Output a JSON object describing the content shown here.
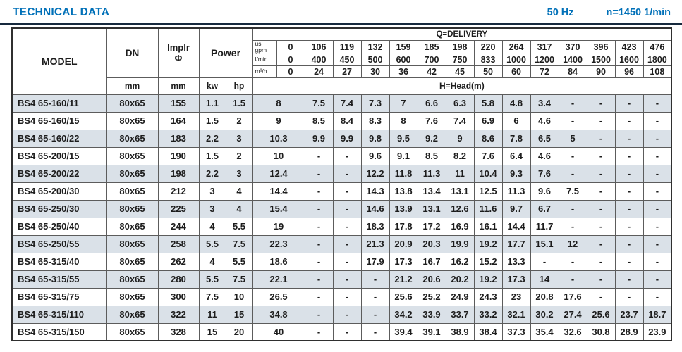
{
  "header": {
    "title": "TECHNICAL DATA",
    "frequency": "50 Hz",
    "speed": "n=1450 1/min"
  },
  "table": {
    "headers": {
      "model": "MODEL",
      "dn": "DN",
      "implr_line1": "Implr",
      "implr_line2": "Φ",
      "power": "Power",
      "mm_dn": "mm",
      "mm_implr": "mm",
      "kw": "kw",
      "hp": "hp",
      "delivery": "Q=DELIVERY",
      "head": "H=Head(m)"
    },
    "units": [
      {
        "l1": "us",
        "l2": "gpm",
        "values": [
          "0",
          "106",
          "119",
          "132",
          "159",
          "185",
          "198",
          "220",
          "264",
          "317",
          "370",
          "396",
          "423",
          "476"
        ]
      },
      {
        "l1": "l/min",
        "values": [
          "0",
          "400",
          "450",
          "500",
          "600",
          "700",
          "750",
          "833",
          "1000",
          "1200",
          "1400",
          "1500",
          "1600",
          "1800"
        ]
      },
      {
        "l1": "m³/h",
        "values": [
          "0",
          "24",
          "27",
          "30",
          "36",
          "42",
          "45",
          "50",
          "60",
          "72",
          "84",
          "90",
          "96",
          "108"
        ]
      }
    ],
    "rows": [
      {
        "model": "BS4 65-160/11",
        "dn": "80x65",
        "implr": "155",
        "kw": "1.1",
        "hp": "1.5",
        "heads": [
          "8",
          "7.5",
          "7.4",
          "7.3",
          "7",
          "6.6",
          "6.3",
          "5.8",
          "4.8",
          "3.4",
          "-",
          "-",
          "-",
          "-"
        ]
      },
      {
        "model": "BS4 65-160/15",
        "dn": "80x65",
        "implr": "164",
        "kw": "1.5",
        "hp": "2",
        "heads": [
          "9",
          "8.5",
          "8.4",
          "8.3",
          "8",
          "7.6",
          "7.4",
          "6.9",
          "6",
          "4.6",
          "-",
          "-",
          "-",
          "-"
        ]
      },
      {
        "model": "BS4 65-160/22",
        "dn": "80x65",
        "implr": "183",
        "kw": "2.2",
        "hp": "3",
        "heads": [
          "10.3",
          "9.9",
          "9.9",
          "9.8",
          "9.5",
          "9.2",
          "9",
          "8.6",
          "7.8",
          "6.5",
          "5",
          "-",
          "-",
          "-"
        ]
      },
      {
        "model": "BS4 65-200/15",
        "dn": "80x65",
        "implr": "190",
        "kw": "1.5",
        "hp": "2",
        "heads": [
          "10",
          "-",
          "-",
          "9.6",
          "9.1",
          "8.5",
          "8.2",
          "7.6",
          "6.4",
          "4.6",
          "-",
          "-",
          "-",
          "-"
        ]
      },
      {
        "model": "BS4 65-200/22",
        "dn": "80x65",
        "implr": "198",
        "kw": "2.2",
        "hp": "3",
        "heads": [
          "12.4",
          "-",
          "-",
          "12.2",
          "11.8",
          "11.3",
          "11",
          "10.4",
          "9.3",
          "7.6",
          "-",
          "-",
          "-",
          "-"
        ]
      },
      {
        "model": "BS4 65-200/30",
        "dn": "80x65",
        "implr": "212",
        "kw": "3",
        "hp": "4",
        "heads": [
          "14.4",
          "-",
          "-",
          "14.3",
          "13.8",
          "13.4",
          "13.1",
          "12.5",
          "11.3",
          "9.6",
          "7.5",
          "-",
          "-",
          "-"
        ]
      },
      {
        "model": "BS4 65-250/30",
        "dn": "80x65",
        "implr": "225",
        "kw": "3",
        "hp": "4",
        "heads": [
          "15.4",
          "-",
          "-",
          "14.6",
          "13.9",
          "13.1",
          "12.6",
          "11.6",
          "9.7",
          "6.7",
          "-",
          "-",
          "-",
          "-"
        ]
      },
      {
        "model": "BS4 65-250/40",
        "dn": "80x65",
        "implr": "244",
        "kw": "4",
        "hp": "5.5",
        "heads": [
          "19",
          "-",
          "-",
          "18.3",
          "17.8",
          "17.2",
          "16.9",
          "16.1",
          "14.4",
          "11.7",
          "-",
          "-",
          "-",
          "-"
        ]
      },
      {
        "model": "BS4 65-250/55",
        "dn": "80x65",
        "implr": "258",
        "kw": "5.5",
        "hp": "7.5",
        "heads": [
          "22.3",
          "-",
          "-",
          "21.3",
          "20.9",
          "20.3",
          "19.9",
          "19.2",
          "17.7",
          "15.1",
          "12",
          "-",
          "-",
          "-"
        ]
      },
      {
        "model": "BS4 65-315/40",
        "dn": "80x65",
        "implr": "262",
        "kw": "4",
        "hp": "5.5",
        "heads": [
          "18.6",
          "-",
          "-",
          "17.9",
          "17.3",
          "16.7",
          "16.2",
          "15.2",
          "13.3",
          "-",
          "-",
          "-",
          "-",
          "-"
        ]
      },
      {
        "model": "BS4 65-315/55",
        "dn": "80x65",
        "implr": "280",
        "kw": "5.5",
        "hp": "7.5",
        "heads": [
          "22.1",
          "-",
          "-",
          "-",
          "21.2",
          "20.6",
          "20.2",
          "19.2",
          "17.3",
          "14",
          "-",
          "-",
          "-",
          "-"
        ]
      },
      {
        "model": "BS4 65-315/75",
        "dn": "80x65",
        "implr": "300",
        "kw": "7.5",
        "hp": "10",
        "heads": [
          "26.5",
          "-",
          "-",
          "-",
          "25.6",
          "25.2",
          "24.9",
          "24.3",
          "23",
          "20.8",
          "17.6",
          "-",
          "-",
          "-"
        ]
      },
      {
        "model": "BS4 65-315/110",
        "dn": "80x65",
        "implr": "322",
        "kw": "11",
        "hp": "15",
        "heads": [
          "34.8",
          "-",
          "-",
          "-",
          "34.2",
          "33.9",
          "33.7",
          "33.2",
          "32.1",
          "30.2",
          "27.4",
          "25.6",
          "23.7",
          "18.7"
        ]
      },
      {
        "model": "BS4 65-315/150",
        "dn": "80x65",
        "implr": "328",
        "kw": "15",
        "hp": "20",
        "heads": [
          "40",
          "-",
          "-",
          "-",
          "39.4",
          "39.1",
          "38.9",
          "38.4",
          "37.3",
          "35.4",
          "32.6",
          "30.8",
          "28.9",
          "23.9"
        ]
      }
    ]
  }
}
